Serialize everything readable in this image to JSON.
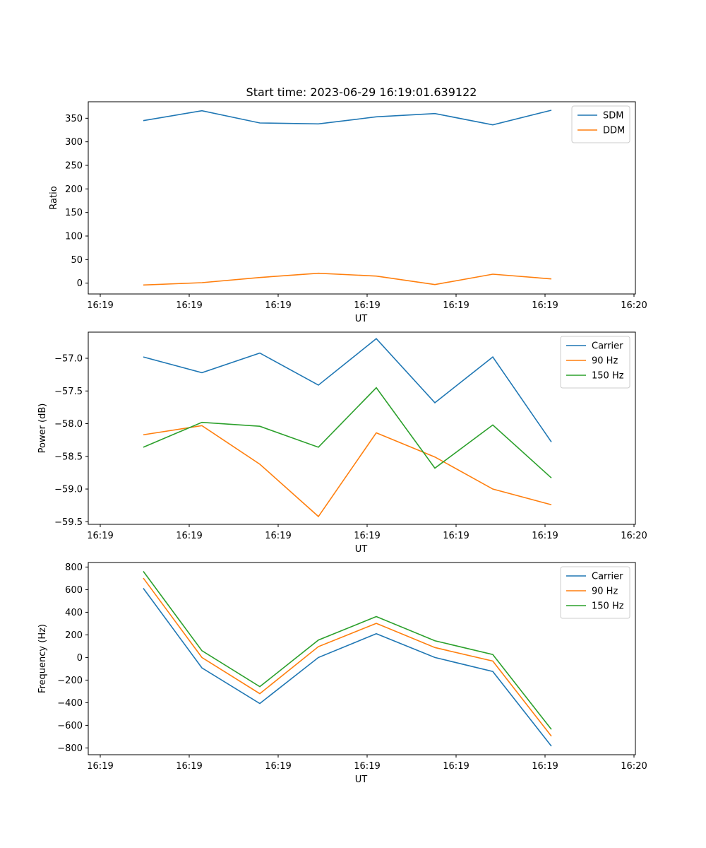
{
  "title": "Start time: 2023-06-29 16:19:01.639122",
  "colors": {
    "blue": "#1f77b4",
    "orange": "#ff7f0e",
    "green": "#2ca02c"
  },
  "chart_data": [
    {
      "type": "line",
      "xlabel": "UT",
      "ylabel": "Ratio",
      "xtick_labels": [
        "16:19",
        "16:19",
        "16:19",
        "16:19",
        "16:19",
        "16:19",
        "16:20"
      ],
      "yticks": [
        0,
        50,
        100,
        150,
        200,
        250,
        300,
        350
      ],
      "ylim": [
        -23,
        385
      ],
      "legend": "top-right",
      "series": [
        {
          "name": "SDM",
          "color": "#1f77b4",
          "values": [
            345,
            366,
            340,
            338,
            353,
            360,
            336,
            367
          ]
        },
        {
          "name": "DDM",
          "color": "#ff7f0e",
          "values": [
            -4,
            1,
            12,
            21,
            15,
            -3,
            19,
            9
          ]
        }
      ]
    },
    {
      "type": "line",
      "xlabel": "UT",
      "ylabel": "Power (dB)",
      "xtick_labels": [
        "16:19",
        "16:19",
        "16:19",
        "16:19",
        "16:19",
        "16:19",
        "16:20"
      ],
      "yticks": [
        -59.5,
        -59.0,
        -58.5,
        -58.0,
        -57.5,
        -57.0
      ],
      "ytick_labels": [
        "−59.5",
        "−59.0",
        "−58.5",
        "−58.0",
        "−57.5",
        "−57.0"
      ],
      "ylim": [
        -59.54,
        -56.6
      ],
      "legend": "top-right",
      "series": [
        {
          "name": "Carrier",
          "color": "#1f77b4",
          "values": [
            -56.98,
            -57.22,
            -56.92,
            -57.41,
            -56.7,
            -57.68,
            -56.98,
            -58.28
          ]
        },
        {
          "name": "90 Hz",
          "color": "#ff7f0e",
          "values": [
            -58.17,
            -58.03,
            -58.62,
            -59.42,
            -58.14,
            -58.51,
            -59.0,
            -59.24
          ]
        },
        {
          "name": "150 Hz",
          "color": "#2ca02c",
          "values": [
            -58.36,
            -57.98,
            -58.04,
            -58.36,
            -57.45,
            -58.68,
            -58.02,
            -58.83
          ]
        }
      ]
    },
    {
      "type": "line",
      "xlabel": "UT",
      "ylabel": "Frequency (Hz)",
      "xtick_labels": [
        "16:19",
        "16:19",
        "16:19",
        "16:19",
        "16:19",
        "16:19",
        "16:20"
      ],
      "yticks": [
        -800,
        -600,
        -400,
        -200,
        0,
        200,
        400,
        600,
        800
      ],
      "ytick_labels": [
        "−800",
        "−600",
        "−400",
        "−200",
        "0",
        "200",
        "400",
        "600",
        "800"
      ],
      "ylim": [
        -860,
        840
      ],
      "legend": "top-right",
      "series": [
        {
          "name": "Carrier",
          "color": "#1f77b4",
          "values": [
            612,
            -92,
            -407,
            0,
            210,
            0,
            -124,
            -784
          ]
        },
        {
          "name": "90 Hz",
          "color": "#ff7f0e",
          "values": [
            702,
            0,
            -320,
            96,
            302,
            88,
            -32,
            -696
          ]
        },
        {
          "name": "150 Hz",
          "color": "#2ca02c",
          "values": [
            762,
            60,
            -258,
            154,
            362,
            148,
            26,
            -636
          ]
        }
      ]
    }
  ]
}
